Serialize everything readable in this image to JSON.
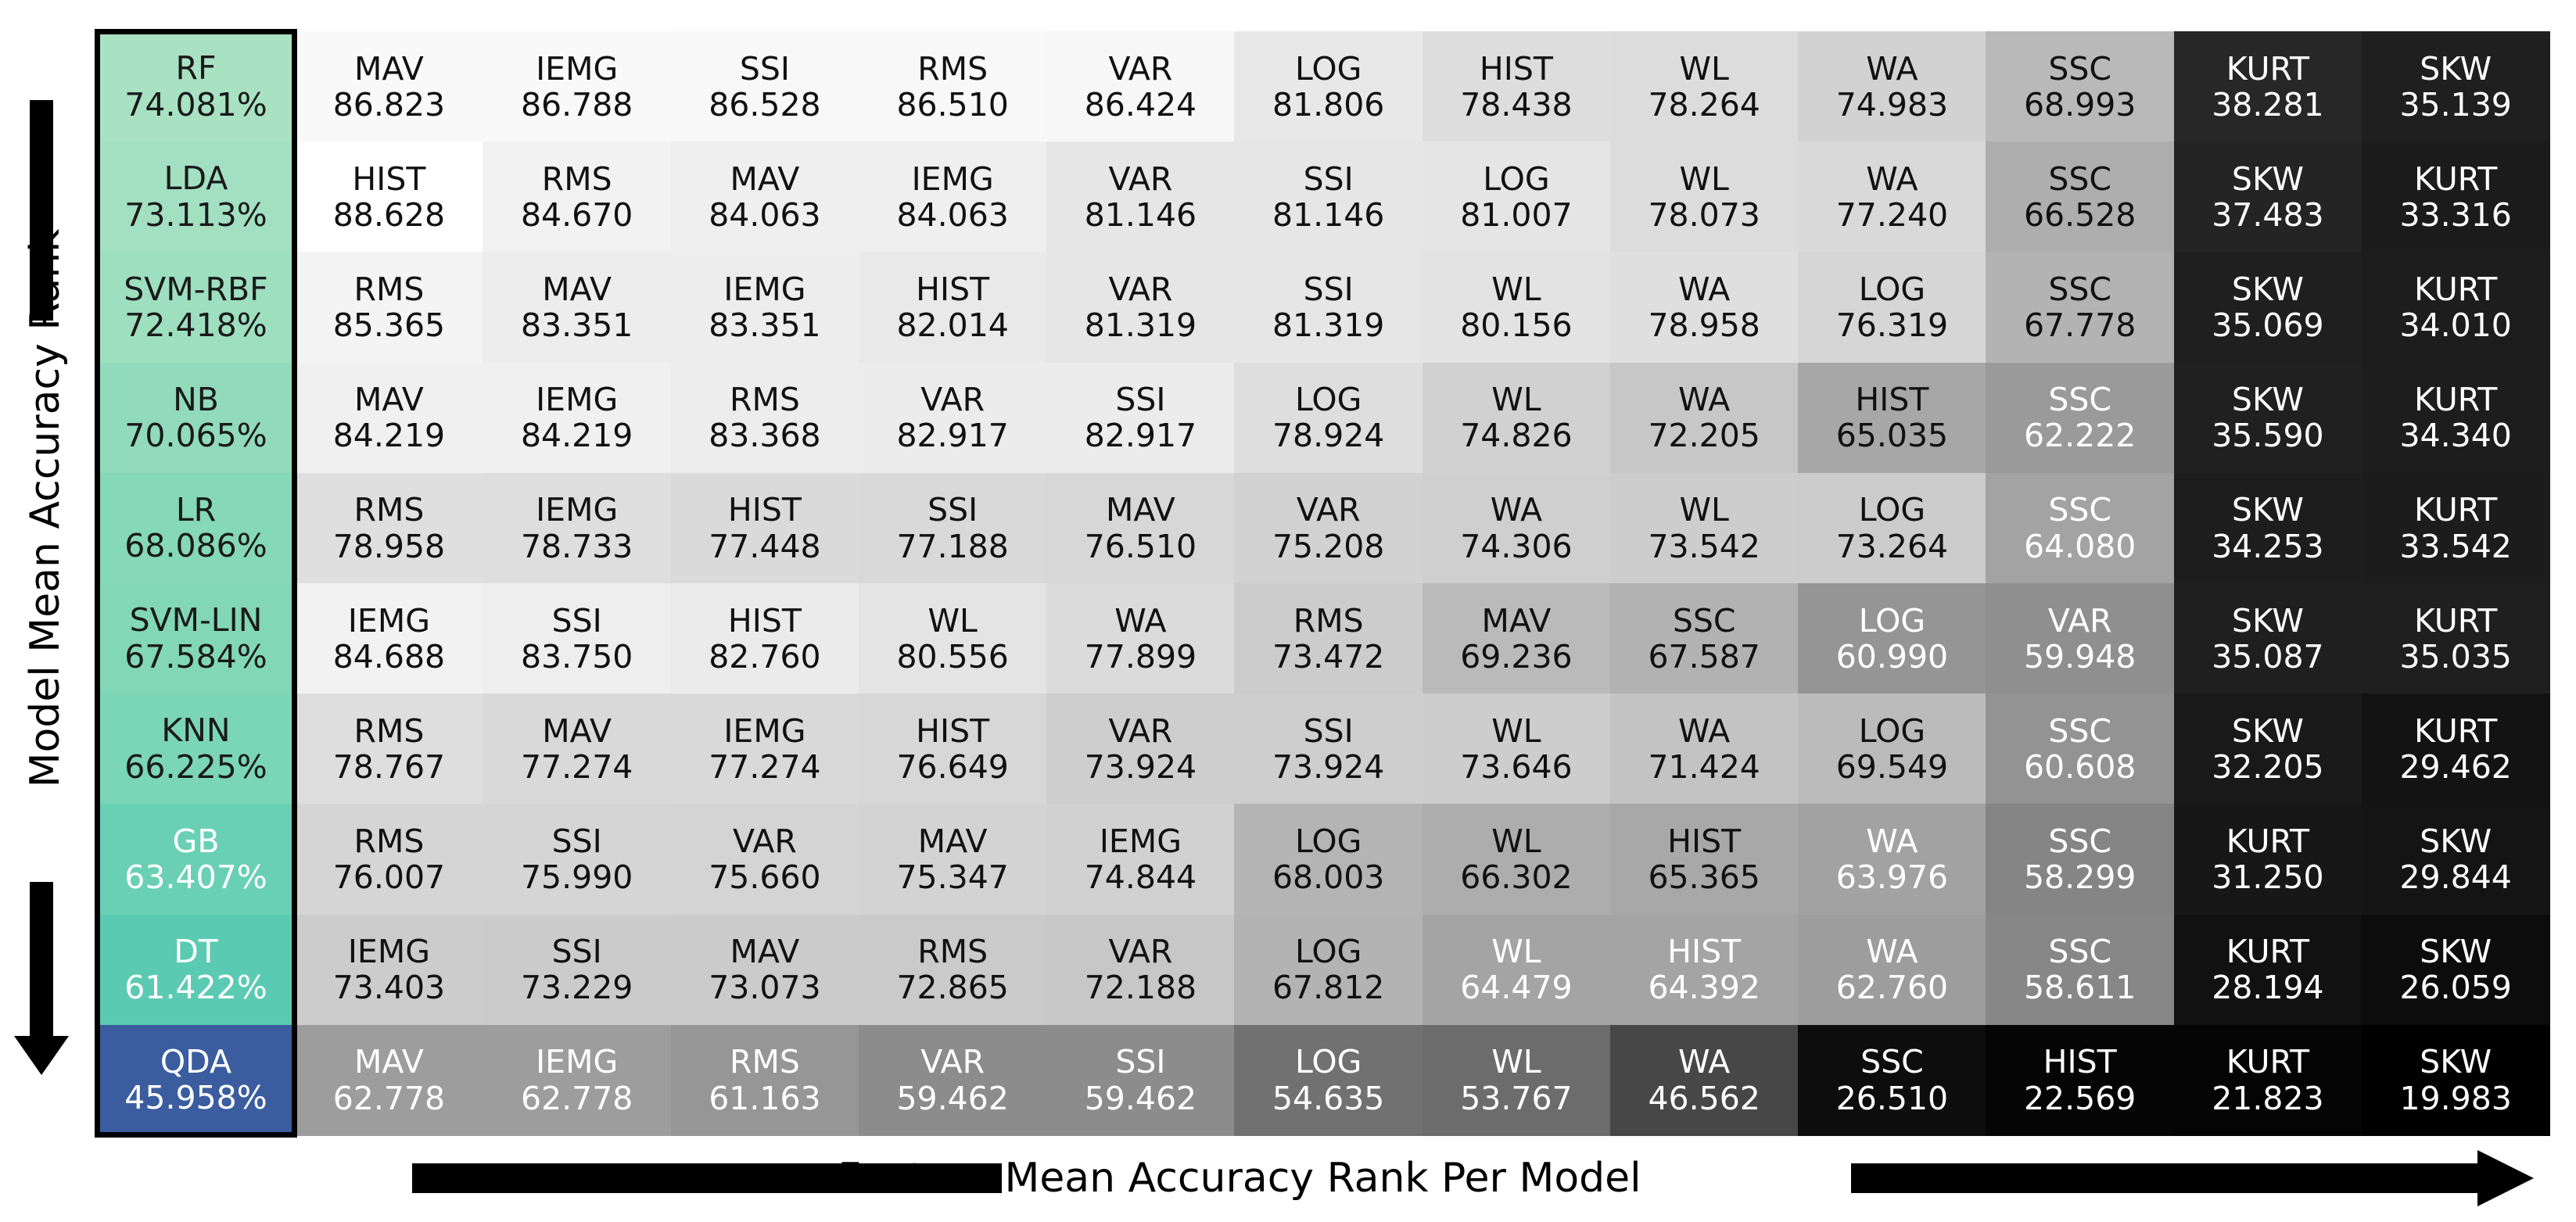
{
  "chart_data": {
    "type": "heatmap",
    "xlabel": "Feature Mean Accuracy Rank Per Model",
    "ylabel": "Model Mean Accuracy Rank",
    "models": [
      {
        "name": "RF",
        "accuracy": "74.081%"
      },
      {
        "name": "LDA",
        "accuracy": "73.113%"
      },
      {
        "name": "SVM-RBF",
        "accuracy": "72.418%"
      },
      {
        "name": "NB",
        "accuracy": "70.065%"
      },
      {
        "name": "LR",
        "accuracy": "68.086%"
      },
      {
        "name": "SVM-LIN",
        "accuracy": "67.584%"
      },
      {
        "name": "KNN",
        "accuracy": "66.225%"
      },
      {
        "name": "GB",
        "accuracy": "63.407%"
      },
      {
        "name": "DT",
        "accuracy": "61.422%"
      },
      {
        "name": "QDA",
        "accuracy": "45.958%"
      }
    ],
    "rows": [
      [
        [
          "MAV",
          "86.823"
        ],
        [
          "IEMG",
          "86.788"
        ],
        [
          "SSI",
          "86.528"
        ],
        [
          "RMS",
          "86.510"
        ],
        [
          "VAR",
          "86.424"
        ],
        [
          "LOG",
          "81.806"
        ],
        [
          "HIST",
          "78.438"
        ],
        [
          "WL",
          "78.264"
        ],
        [
          "WA",
          "74.983"
        ],
        [
          "SSC",
          "68.993"
        ],
        [
          "KURT",
          "38.281"
        ],
        [
          "SKW",
          "35.139"
        ]
      ],
      [
        [
          "HIST",
          "88.628"
        ],
        [
          "RMS",
          "84.670"
        ],
        [
          "MAV",
          "84.063"
        ],
        [
          "IEMG",
          "84.063"
        ],
        [
          "VAR",
          "81.146"
        ],
        [
          "SSI",
          "81.146"
        ],
        [
          "LOG",
          "81.007"
        ],
        [
          "WL",
          "78.073"
        ],
        [
          "WA",
          "77.240"
        ],
        [
          "SSC",
          "66.528"
        ],
        [
          "SKW",
          "37.483"
        ],
        [
          "KURT",
          "33.316"
        ]
      ],
      [
        [
          "RMS",
          "85.365"
        ],
        [
          "MAV",
          "83.351"
        ],
        [
          "IEMG",
          "83.351"
        ],
        [
          "HIST",
          "82.014"
        ],
        [
          "VAR",
          "81.319"
        ],
        [
          "SSI",
          "81.319"
        ],
        [
          "WL",
          "80.156"
        ],
        [
          "WA",
          "78.958"
        ],
        [
          "LOG",
          "76.319"
        ],
        [
          "SSC",
          "67.778"
        ],
        [
          "SKW",
          "35.069"
        ],
        [
          "KURT",
          "34.010"
        ]
      ],
      [
        [
          "MAV",
          "84.219"
        ],
        [
          "IEMG",
          "84.219"
        ],
        [
          "RMS",
          "83.368"
        ],
        [
          "VAR",
          "82.917"
        ],
        [
          "SSI",
          "82.917"
        ],
        [
          "LOG",
          "78.924"
        ],
        [
          "WL",
          "74.826"
        ],
        [
          "WA",
          "72.205"
        ],
        [
          "HIST",
          "65.035"
        ],
        [
          "SSC",
          "62.222"
        ],
        [
          "SKW",
          "35.590"
        ],
        [
          "KURT",
          "34.340"
        ]
      ],
      [
        [
          "RMS",
          "78.958"
        ],
        [
          "IEMG",
          "78.733"
        ],
        [
          "HIST",
          "77.448"
        ],
        [
          "SSI",
          "77.188"
        ],
        [
          "MAV",
          "76.510"
        ],
        [
          "VAR",
          "75.208"
        ],
        [
          "WA",
          "74.306"
        ],
        [
          "WL",
          "73.542"
        ],
        [
          "LOG",
          "73.264"
        ],
        [
          "SSC",
          "64.080"
        ],
        [
          "SKW",
          "34.253"
        ],
        [
          "KURT",
          "33.542"
        ]
      ],
      [
        [
          "IEMG",
          "84.688"
        ],
        [
          "SSI",
          "83.750"
        ],
        [
          "HIST",
          "82.760"
        ],
        [
          "WL",
          "80.556"
        ],
        [
          "WA",
          "77.899"
        ],
        [
          "RMS",
          "73.472"
        ],
        [
          "MAV",
          "69.236"
        ],
        [
          "SSC",
          "67.587"
        ],
        [
          "LOG",
          "60.990"
        ],
        [
          "VAR",
          "59.948"
        ],
        [
          "SKW",
          "35.087"
        ],
        [
          "KURT",
          "35.035"
        ]
      ],
      [
        [
          "RMS",
          "78.767"
        ],
        [
          "MAV",
          "77.274"
        ],
        [
          "IEMG",
          "77.274"
        ],
        [
          "HIST",
          "76.649"
        ],
        [
          "VAR",
          "73.924"
        ],
        [
          "SSI",
          "73.924"
        ],
        [
          "WL",
          "73.646"
        ],
        [
          "WA",
          "71.424"
        ],
        [
          "LOG",
          "69.549"
        ],
        [
          "SSC",
          "60.608"
        ],
        [
          "SKW",
          "32.205"
        ],
        [
          "KURT",
          "29.462"
        ]
      ],
      [
        [
          "RMS",
          "76.007"
        ],
        [
          "SSI",
          "75.990"
        ],
        [
          "VAR",
          "75.660"
        ],
        [
          "MAV",
          "75.347"
        ],
        [
          "IEMG",
          "74.844"
        ],
        [
          "LOG",
          "68.003"
        ],
        [
          "WL",
          "66.302"
        ],
        [
          "HIST",
          "65.365"
        ],
        [
          "WA",
          "63.976"
        ],
        [
          "SSC",
          "58.299"
        ],
        [
          "KURT",
          "31.250"
        ],
        [
          "SKW",
          "29.844"
        ]
      ],
      [
        [
          "IEMG",
          "73.403"
        ],
        [
          "SSI",
          "73.229"
        ],
        [
          "MAV",
          "73.073"
        ],
        [
          "RMS",
          "72.865"
        ],
        [
          "VAR",
          "72.188"
        ],
        [
          "LOG",
          "67.812"
        ],
        [
          "WL",
          "64.479"
        ],
        [
          "HIST",
          "64.392"
        ],
        [
          "WA",
          "62.760"
        ],
        [
          "SSC",
          "58.611"
        ],
        [
          "KURT",
          "28.194"
        ],
        [
          "SKW",
          "26.059"
        ]
      ],
      [
        [
          "MAV",
          "62.778"
        ],
        [
          "IEMG",
          "62.778"
        ],
        [
          "RMS",
          "61.163"
        ],
        [
          "VAR",
          "59.462"
        ],
        [
          "SSI",
          "59.462"
        ],
        [
          "LOG",
          "54.635"
        ],
        [
          "WL",
          "53.767"
        ],
        [
          "WA",
          "46.562"
        ],
        [
          "SSC",
          "26.510"
        ],
        [
          "HIST",
          "22.569"
        ],
        [
          "KURT",
          "21.823"
        ],
        [
          "SKW",
          "19.983"
        ]
      ]
    ],
    "colors": {
      "feature_scale": "greys",
      "model_scale": [
        "#a8e2c2",
        "#6fd2b4",
        "#46c1b1",
        "#3aa6ad",
        "#3b5c9f"
      ],
      "model_frame": "#000000",
      "arrows": "#000000"
    }
  }
}
